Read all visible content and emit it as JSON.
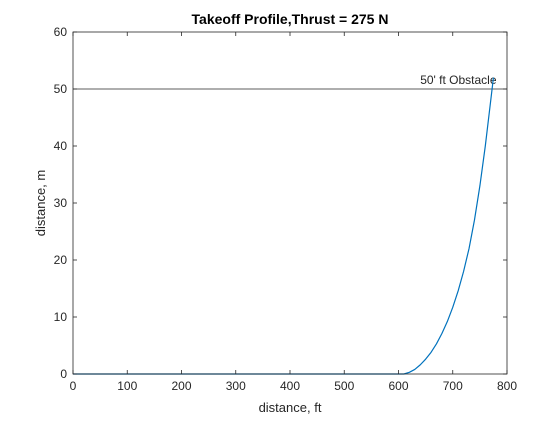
{
  "chart_data": {
    "type": "line",
    "title": "Takeoff Profile,Thrust = 275 N",
    "xlabel": "distance, ft",
    "ylabel": "distance, m",
    "xlim": [
      0,
      800
    ],
    "ylim": [
      0,
      60
    ],
    "xticks": [
      0,
      100,
      200,
      300,
      400,
      500,
      600,
      700,
      800
    ],
    "yticks": [
      0,
      10,
      20,
      30,
      40,
      50,
      60
    ],
    "grid": false,
    "legend": "none",
    "series": [
      {
        "color": "#0072BD",
        "x": [
          0,
          100,
          200,
          300,
          400,
          500,
          600,
          610,
          620,
          630,
          640,
          650,
          660,
          670,
          680,
          690,
          700,
          710,
          720,
          730,
          740,
          750,
          760,
          770,
          775
        ],
        "y": [
          0,
          0,
          0,
          0,
          0,
          0,
          0,
          0,
          0.3,
          0.8,
          1.6,
          2.6,
          3.8,
          5.3,
          7.1,
          9.2,
          11.7,
          14.6,
          18.0,
          22.0,
          27.0,
          33.0,
          40.0,
          48.0,
          52.0
        ]
      }
    ],
    "reference_lines": [
      {
        "y": 50,
        "label": "50' ft Obstacle",
        "label_x": 640,
        "color": "#262626"
      }
    ]
  }
}
